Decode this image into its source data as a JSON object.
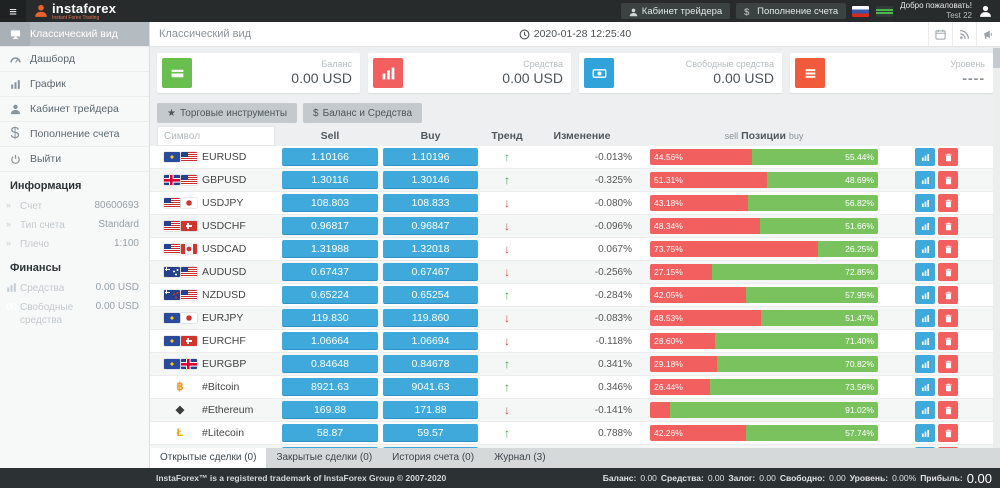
{
  "header": {
    "brand": "instaforex",
    "brand_sub": "Instant Forex Trading",
    "trader_cabinet": "Кабинет трейдера",
    "deposit": "Пополнение счета",
    "welcome_line1": "Добро пожаловать!",
    "welcome_line2": "Test 22"
  },
  "sidebar": {
    "menu": [
      {
        "label": "Классический вид",
        "icon": "desktop-icon",
        "active": true
      },
      {
        "label": "Дашборд",
        "icon": "dashboard-icon",
        "active": false
      },
      {
        "label": "График",
        "icon": "bar-chart-icon",
        "active": false
      },
      {
        "label": "Кабинет трейдера",
        "icon": "user-icon",
        "active": false
      },
      {
        "label": "Пополнение счета",
        "icon": "dollar-icon",
        "active": false
      },
      {
        "label": "Выйти",
        "icon": "power-icon",
        "active": false
      }
    ],
    "info_heading": "Информация",
    "info": [
      {
        "label": "Счет",
        "value": "80600693"
      },
      {
        "label": "Тип счета",
        "value": "Standard"
      },
      {
        "label": "Плечо",
        "value": "1:100"
      }
    ],
    "finance_heading": "Финансы",
    "finance": [
      {
        "label": "Средства",
        "value": "0.00 USD",
        "icon": "equity-icon"
      },
      {
        "label": "Свободные средства",
        "value": "0.00 USD",
        "icon": "free-margin-icon"
      }
    ]
  },
  "main": {
    "page_title": "Классический вид",
    "datetime": "2020-01-28 12:25:40",
    "cards": [
      {
        "label": "Баланс",
        "value": "0.00 USD",
        "color": "#68bf4e",
        "icon": "credit-card-icon"
      },
      {
        "label": "Средства",
        "value": "0.00 USD",
        "color": "#f15f5f",
        "icon": "bar-chart-icon"
      },
      {
        "label": "Свободные средства",
        "value": "0.00 USD",
        "color": "#2fa3da",
        "icon": "money-icon"
      },
      {
        "label": "Уровень",
        "value": "----",
        "color": "#f25a3c",
        "icon": "hbars-icon"
      }
    ],
    "toolbar": [
      {
        "label": "Торговые инструменты",
        "icon": "star-icon"
      },
      {
        "label": "Баланс и Средства",
        "icon": "dollar-icon"
      }
    ],
    "table": {
      "search_placeholder": "Символ",
      "headers": {
        "sell": "Sell",
        "buy": "Buy",
        "trend": "Тренд",
        "change": "Изменение",
        "pos_sell": "sell",
        "pos_label": "Позиции",
        "pos_buy": "buy"
      },
      "rows": [
        {
          "symbol": "EURUSD",
          "flags": [
            "eu",
            "us"
          ],
          "sell": "1.10166",
          "buy": "1.10196",
          "trend": "up",
          "change": "-0.013%",
          "sell_pct": 44.56,
          "buy_pct": 55.44,
          "sell_label": "44.56%",
          "buy_label": "55.44%"
        },
        {
          "symbol": "GBPUSD",
          "flags": [
            "gb",
            "us"
          ],
          "sell": "1.30116",
          "buy": "1.30146",
          "trend": "up",
          "change": "-0.325%",
          "sell_pct": 51.31,
          "buy_pct": 48.69,
          "sell_label": "51.31%",
          "buy_label": "48.69%"
        },
        {
          "symbol": "USDJPY",
          "flags": [
            "us",
            "jp"
          ],
          "sell": "108.803",
          "buy": "108.833",
          "trend": "down",
          "change": "-0.080%",
          "sell_pct": 43.18,
          "buy_pct": 56.82,
          "sell_label": "43.18%",
          "buy_label": "56.82%"
        },
        {
          "symbol": "USDCHF",
          "flags": [
            "us",
            "ch"
          ],
          "sell": "0.96817",
          "buy": "0.96847",
          "trend": "down",
          "change": "-0.096%",
          "sell_pct": 48.34,
          "buy_pct": 51.66,
          "sell_label": "48.34%",
          "buy_label": "51.66%"
        },
        {
          "symbol": "USDCAD",
          "flags": [
            "us",
            "ca"
          ],
          "sell": "1.31988",
          "buy": "1.32018",
          "trend": "down",
          "change": "0.067%",
          "sell_pct": 73.75,
          "buy_pct": 26.25,
          "sell_label": "73.75%",
          "buy_label": "26.25%"
        },
        {
          "symbol": "AUDUSD",
          "flags": [
            "au",
            "us"
          ],
          "sell": "0.67437",
          "buy": "0.67467",
          "trend": "down",
          "change": "-0.256%",
          "sell_pct": 27.15,
          "buy_pct": 72.85,
          "sell_label": "27.15%",
          "buy_label": "72.85%"
        },
        {
          "symbol": "NZDUSD",
          "flags": [
            "nz",
            "us"
          ],
          "sell": "0.65224",
          "buy": "0.65254",
          "trend": "up",
          "change": "-0.284%",
          "sell_pct": 42.05,
          "buy_pct": 57.95,
          "sell_label": "42.05%",
          "buy_label": "57.95%"
        },
        {
          "symbol": "EURJPY",
          "flags": [
            "eu",
            "jp"
          ],
          "sell": "119.830",
          "buy": "119.860",
          "trend": "down",
          "change": "-0.083%",
          "sell_pct": 48.53,
          "buy_pct": 51.47,
          "sell_label": "48.53%",
          "buy_label": "51.47%"
        },
        {
          "symbol": "EURCHF",
          "flags": [
            "eu",
            "ch"
          ],
          "sell": "1.06664",
          "buy": "1.06694",
          "trend": "down",
          "change": "-0.118%",
          "sell_pct": 28.6,
          "buy_pct": 71.4,
          "sell_label": "28.60%",
          "buy_label": "71.40%"
        },
        {
          "symbol": "EURGBP",
          "flags": [
            "eu",
            "gb"
          ],
          "sell": "0.84648",
          "buy": "0.84678",
          "trend": "up",
          "change": "0.341%",
          "sell_pct": 29.18,
          "buy_pct": 70.82,
          "sell_label": "29.18%",
          "buy_label": "70.82%"
        },
        {
          "symbol": "#Bitcoin",
          "crypto": {
            "name": "bitcoin-icon",
            "glyph": "฿",
            "color": "#f7931a"
          },
          "sell": "8921.63",
          "buy": "9041.63",
          "trend": "up",
          "change": "0.346%",
          "sell_pct": 26.44,
          "buy_pct": 73.56,
          "sell_label": "26.44%",
          "buy_label": "73.56%"
        },
        {
          "symbol": "#Ethereum",
          "crypto": {
            "name": "ethereum-icon",
            "glyph": "◆",
            "color": "#3c3c3d"
          },
          "sell": "169.88",
          "buy": "171.88",
          "trend": "down",
          "change": "-0.141%",
          "sell_pct": 8.98,
          "buy_pct": 91.02,
          "sell_label": "",
          "buy_label": "91.02%"
        },
        {
          "symbol": "#Litecoin",
          "crypto": {
            "name": "litecoin-icon",
            "glyph": "Ł",
            "color": "#f0a30a"
          },
          "sell": "58.87",
          "buy": "59.57",
          "trend": "up",
          "change": "0.788%",
          "sell_pct": 42.26,
          "buy_pct": 57.74,
          "sell_label": "42.26%",
          "buy_label": "57.74%"
        },
        {
          "symbol": "",
          "sell": "",
          "buy": "",
          "trend": "",
          "change": "",
          "sell_pct": 4,
          "buy_pct": 96,
          "sell_label": "",
          "buy_label": ""
        }
      ]
    },
    "tabs": [
      {
        "label": "Открытые сделки (0)",
        "active": true
      },
      {
        "label": "Закрытые сделки (0)",
        "active": false
      },
      {
        "label": "История счета (0)",
        "active": false
      },
      {
        "label": "Журнал (3)",
        "active": false
      }
    ]
  },
  "footer": {
    "left": "InstaForex™ is a registered trademark of InstaForex Group © 2007-2020",
    "stats": [
      {
        "label": "Баланс:",
        "value": "0.00"
      },
      {
        "label": "Средства:",
        "value": "0.00"
      },
      {
        "label": "Залог:",
        "value": "0.00"
      },
      {
        "label": "Свободно:",
        "value": "0.00"
      },
      {
        "label": "Уровень:",
        "value": "0.00%"
      },
      {
        "label": "Прибыль:",
        "value": "0.00"
      }
    ]
  }
}
